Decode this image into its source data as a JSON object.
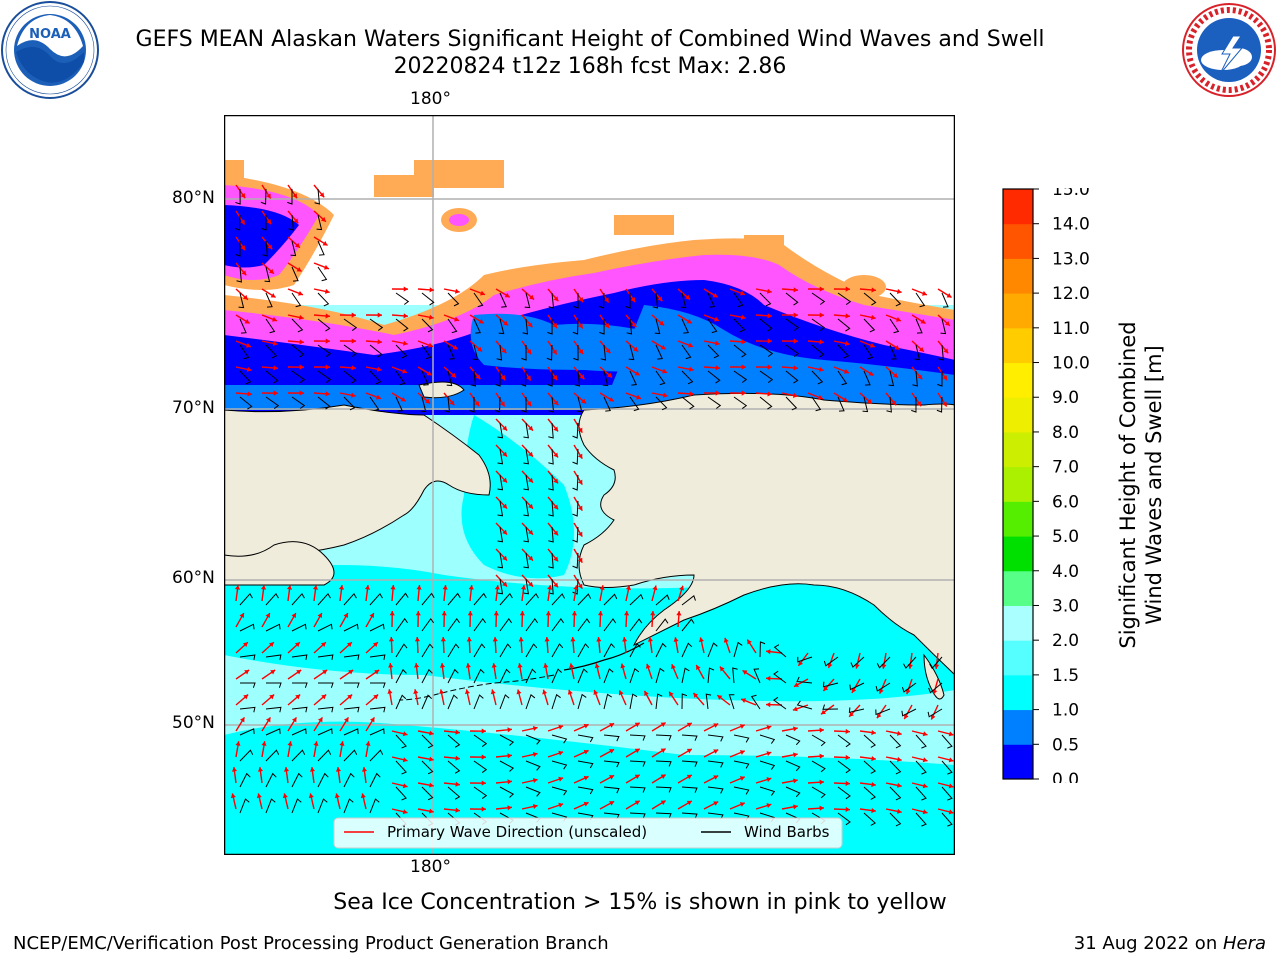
{
  "header": {
    "title_line1": "GEFS MEAN Alaskan Waters Significant Height of Combined Wind Waves and Swell",
    "title_line2": "20220824 t12z 168h fcst   Max: 2.86"
  },
  "logos": {
    "left": {
      "name": "NOAA",
      "ring_text": "NATIONAL OCEANIC AND ATMOSPHERIC ADMINISTRATION · U.S. DEPARTMENT OF COMMERCE"
    },
    "right": {
      "name": "NATIONAL WEATHER SERVICE"
    }
  },
  "map": {
    "lon_label_top": "180°",
    "lon_label_bottom": "180°",
    "lat_labels": [
      "80°N",
      "70°N",
      "60°N",
      "50°N"
    ],
    "legend": {
      "wave_label": "Primary Wave Direction (unscaled)",
      "wind_label": "Wind Barbs",
      "wave_color": "#ff0000",
      "wind_color": "#000000"
    },
    "colors": {
      "land": "#efecdc",
      "ocean_low": "#00ffff",
      "ocean_light": "#9effff",
      "ocean_1m": "#007fff",
      "ice_blue": "#0000ff",
      "ice_pink": "#ff55ff",
      "ice_orange": "#ffaa55",
      "ice_yellow": "#ffee33"
    }
  },
  "colorbar": {
    "title_line1": "Significant Height of Combined",
    "title_line2": "Wind Waves and Swell [m]",
    "ticks": [
      "15.0",
      "14.0",
      "13.0",
      "12.0",
      "11.0",
      "10.0",
      "9.0",
      "8.0",
      "7.0",
      "6.0",
      "5.0",
      "4.0",
      "3.0",
      "2.0",
      "1.5",
      "1.0",
      "0.5",
      "0.0"
    ],
    "bins": [
      {
        "from": 0.0,
        "to": 0.5,
        "color": "#0000ff"
      },
      {
        "from": 0.5,
        "to": 1.0,
        "color": "#007fff"
      },
      {
        "from": 1.0,
        "to": 1.5,
        "color": "#00ffff"
      },
      {
        "from": 1.5,
        "to": 2.0,
        "color": "#55ffff"
      },
      {
        "from": 2.0,
        "to": 3.0,
        "color": "#aaffff"
      },
      {
        "from": 3.0,
        "to": 4.0,
        "color": "#55ff88"
      },
      {
        "from": 4.0,
        "to": 5.0,
        "color": "#00e000"
      },
      {
        "from": 5.0,
        "to": 6.0,
        "color": "#55ee00"
      },
      {
        "from": 6.0,
        "to": 7.0,
        "color": "#aaf000"
      },
      {
        "from": 7.0,
        "to": 8.0,
        "color": "#ccee00"
      },
      {
        "from": 8.0,
        "to": 9.0,
        "color": "#eeee00"
      },
      {
        "from": 9.0,
        "to": 10.0,
        "color": "#ffee00"
      },
      {
        "from": 10.0,
        "to": 11.0,
        "color": "#ffcc00"
      },
      {
        "from": 11.0,
        "to": 12.0,
        "color": "#ffaa00"
      },
      {
        "from": 12.0,
        "to": 13.0,
        "color": "#ff8800"
      },
      {
        "from": 13.0,
        "to": 14.0,
        "color": "#ff5500"
      },
      {
        "from": 14.0,
        "to": 15.0,
        "color": "#ff2a00"
      }
    ]
  },
  "caption": "Sea Ice Concentration > 15% is shown in pink to yellow",
  "footer": {
    "left": "NCEP/EMC/Verification Post Processing Product Generation Branch",
    "right_date": "31 Aug 2022 on ",
    "right_host": "Hera"
  }
}
